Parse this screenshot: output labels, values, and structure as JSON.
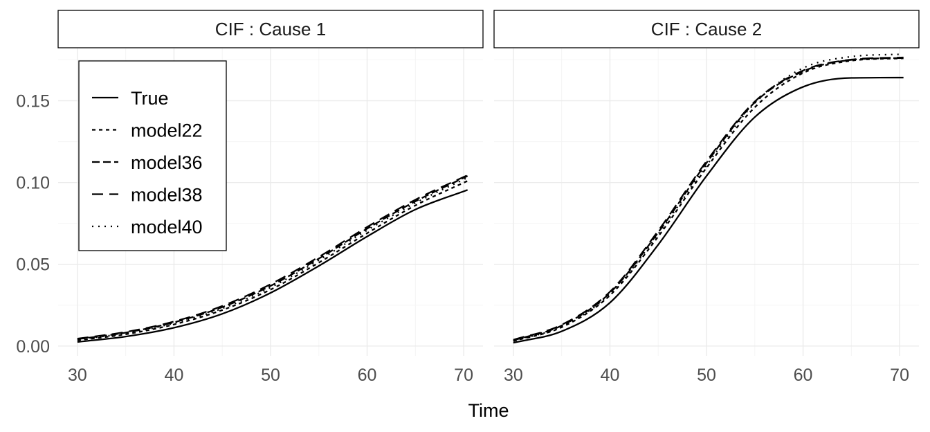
{
  "chart_data": {
    "type": "line",
    "xlabel": "Time",
    "ylabel": "",
    "grid": true,
    "legend_position": "top-left",
    "series_styles": [
      {
        "name": "True",
        "dash": "solid"
      },
      {
        "name": "model22",
        "dash": "short-dash"
      },
      {
        "name": "model36",
        "dash": "dash"
      },
      {
        "name": "model38",
        "dash": "long-dash"
      },
      {
        "name": "model40",
        "dash": "dotted"
      }
    ],
    "panels": [
      {
        "strip_label": "CIF : Cause 1",
        "xlim": [
          28,
          72
        ],
        "ylim": [
          -0.006,
          0.182
        ],
        "x_ticks": [
          30,
          40,
          50,
          60,
          70
        ],
        "x_tick_labels": [
          "30",
          "40",
          "50",
          "60",
          "70"
        ],
        "y_ticks": [
          0.0,
          0.05,
          0.1,
          0.15
        ],
        "y_tick_labels": [
          "0.00",
          "0.05",
          "0.10",
          "0.15"
        ],
        "x": [
          30,
          35,
          40,
          45,
          50,
          55,
          60,
          65,
          70.4
        ],
        "series": [
          {
            "name": "True",
            "values": [
              0.0025,
              0.0058,
              0.0112,
              0.0197,
              0.0325,
              0.049,
              0.067,
              0.0835,
              0.0955
            ]
          },
          {
            "name": "model22",
            "values": [
              0.0035,
              0.0072,
              0.0132,
              0.022,
              0.0345,
              0.051,
              0.069,
              0.086,
              0.101
            ]
          },
          {
            "name": "model36",
            "values": [
              0.0042,
              0.0082,
              0.0145,
              0.0238,
              0.0368,
              0.0535,
              0.0718,
              0.0885,
              0.104
            ]
          },
          {
            "name": "model38",
            "values": [
              0.0045,
              0.0086,
              0.015,
              0.0245,
              0.0378,
              0.0545,
              0.0728,
              0.0895,
              0.1045
            ]
          },
          {
            "name": "model40",
            "values": [
              0.004,
              0.0078,
              0.014,
              0.023,
              0.0358,
              0.0525,
              0.0708,
              0.0875,
              0.103
            ]
          }
        ]
      },
      {
        "strip_label": "CIF : Cause 2",
        "xlim": [
          28,
          72
        ],
        "ylim": [
          -0.006,
          0.182
        ],
        "x_ticks": [
          30,
          40,
          50,
          60,
          70
        ],
        "x_tick_labels": [
          "30",
          "40",
          "50",
          "60",
          "70"
        ],
        "y_ticks": [
          0.0,
          0.05,
          0.1,
          0.15
        ],
        "y_tick_labels": [
          "0.00",
          "0.05",
          "0.10",
          "0.15"
        ],
        "x": [
          30,
          35,
          40,
          45,
          50,
          55,
          60,
          65,
          70.4
        ],
        "series": [
          {
            "name": "True",
            "values": [
              0.002,
              0.009,
              0.0265,
              0.062,
              0.104,
              0.14,
              0.1585,
              0.164,
              0.1642
            ]
          },
          {
            "name": "model22",
            "values": [
              0.003,
              0.0115,
              0.031,
              0.067,
              0.109,
              0.146,
              0.167,
              0.1745,
              0.176
            ]
          },
          {
            "name": "model36",
            "values": [
              0.0035,
              0.0125,
              0.0325,
              0.0695,
              0.112,
              0.149,
              0.168,
              0.175,
              0.1762
            ]
          },
          {
            "name": "model38",
            "values": [
              0.0038,
              0.013,
              0.0332,
              0.0705,
              0.113,
              0.1495,
              0.1685,
              0.1752,
              0.1765
            ]
          },
          {
            "name": "model40",
            "values": [
              0.0032,
              0.012,
              0.0318,
              0.0685,
              0.1105,
              0.1485,
              0.17,
              0.177,
              0.1785
            ]
          }
        ]
      }
    ]
  }
}
